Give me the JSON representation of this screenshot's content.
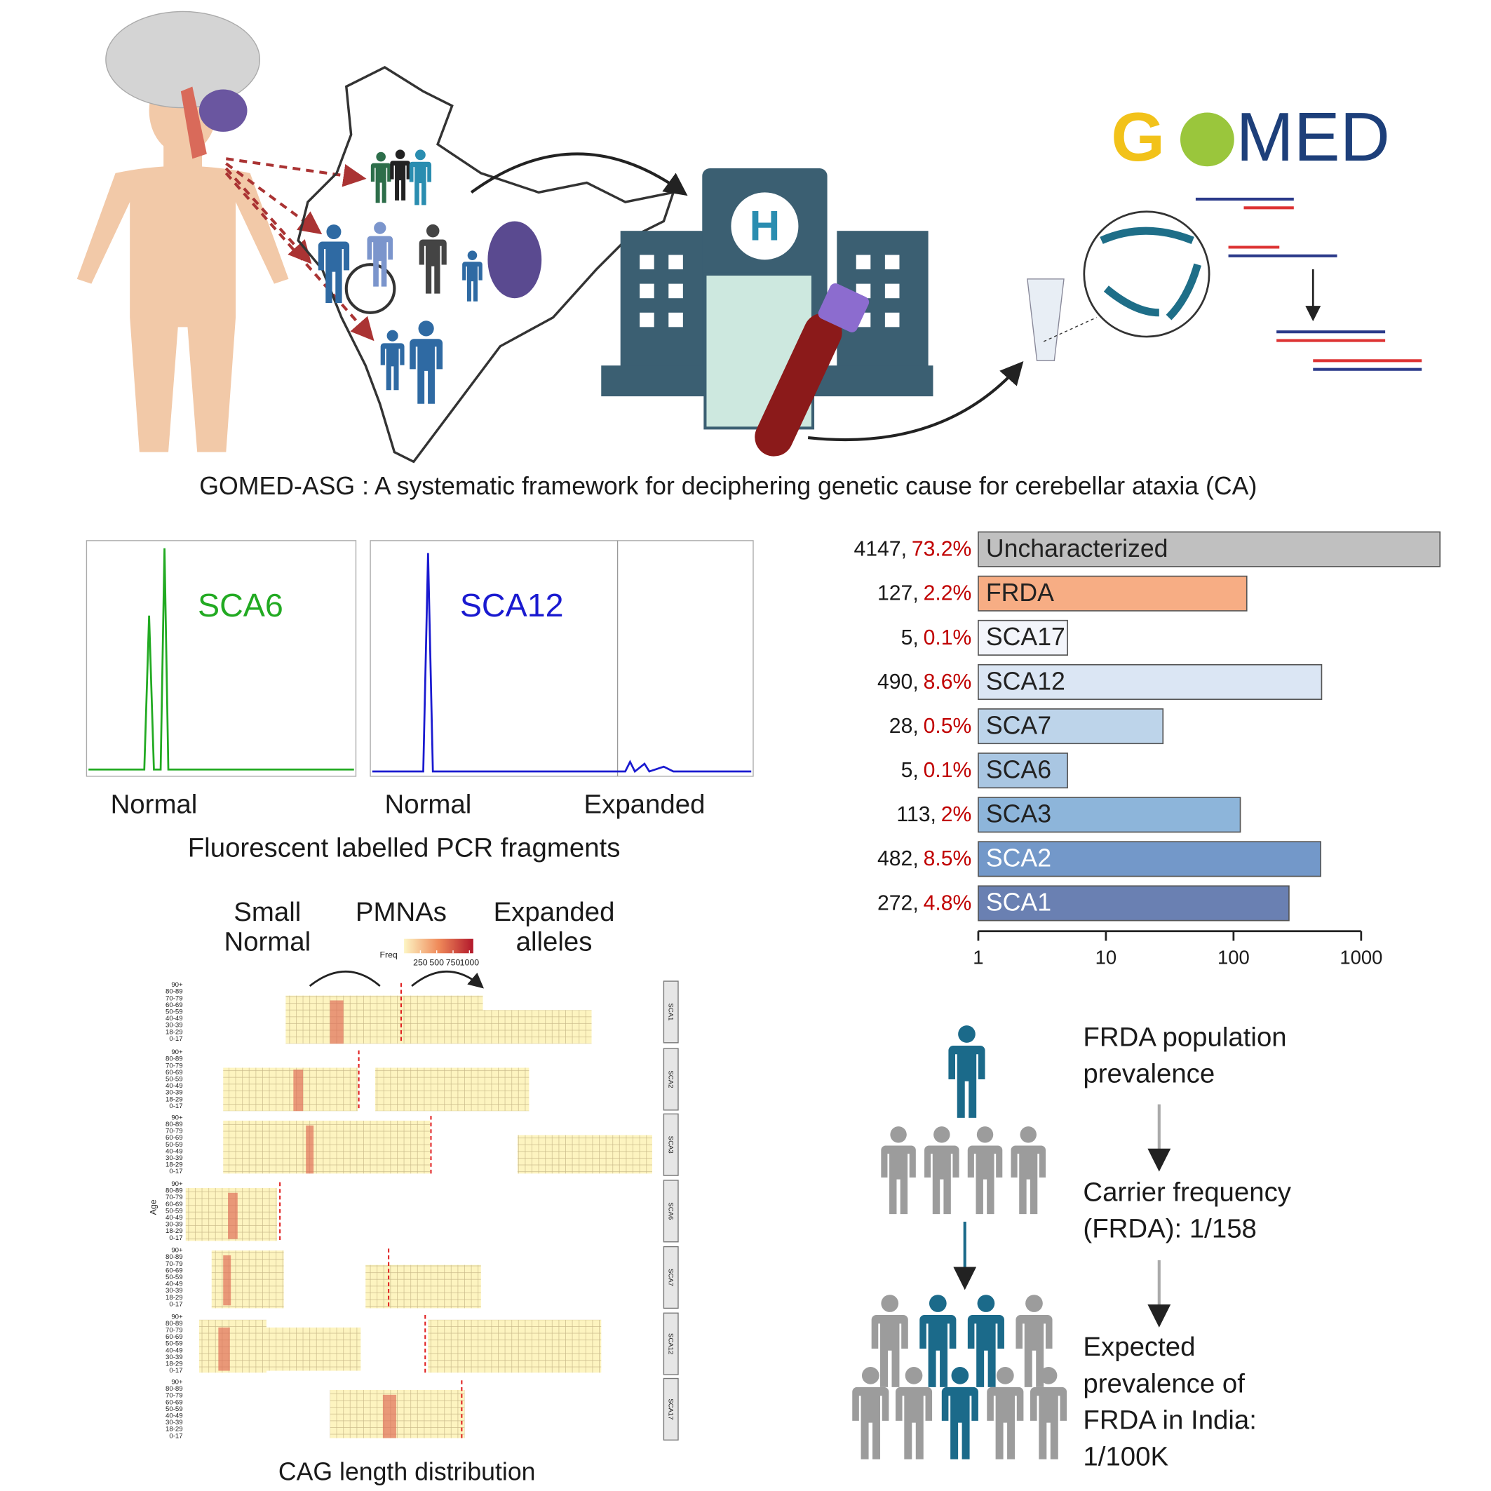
{
  "caption": "GOMED-ASG : A systematic framework for deciphering genetic cause for cerebellar ataxia (CA)",
  "logo": [
    "G",
    "MED"
  ],
  "hospital_letter": "H",
  "pcr": {
    "panel_labels": [
      "SCA6",
      "SCA12"
    ],
    "peak_labels": [
      "Normal",
      "Normal",
      "Expanded"
    ],
    "title": "Fluorescent labelled PCR fragments"
  },
  "chart_data": {
    "type": "bar",
    "orientation": "horizontal",
    "log_scale": true,
    "categories": [
      "Uncharacterized",
      "FRDA",
      "SCA17",
      "SCA12",
      "SCA7",
      "SCA6",
      "SCA3",
      "SCA2",
      "SCA1"
    ],
    "values": [
      4147,
      127,
      5,
      490,
      28,
      5,
      113,
      482,
      272
    ],
    "value_labels": [
      "4147,",
      "127,",
      "5,",
      "490,",
      "28,",
      "5,",
      "113,",
      "482,",
      "272,"
    ],
    "percent_labels": [
      "73.2%",
      "2.2%",
      "0.1%",
      "8.6%",
      "0.5%",
      "0.1%",
      "2%",
      "8.5%",
      "4.8%"
    ],
    "colors": [
      "#c0c0c0",
      "#f7ad84",
      "#f3f5fb",
      "#dbe6f4",
      "#bdd4ea",
      "#a9c6e2",
      "#8db5da",
      "#7398c9",
      "#6a80b2"
    ],
    "label_colors": [
      "#222222",
      "#222222",
      "#222222",
      "#222222",
      "#222222",
      "#222222",
      "#222222",
      "#ffffff",
      "#ffffff"
    ],
    "percent_color": "#c00000",
    "xlim": [
      1,
      1000
    ],
    "xticks": [
      1,
      10,
      100,
      1000
    ]
  },
  "heatmap": {
    "headers": [
      [
        "Small",
        "Normal"
      ],
      [
        "PMNAs"
      ],
      [
        "Expanded",
        "alleles"
      ]
    ],
    "legend_title": "Freq",
    "legend_ticks": [
      250,
      500,
      750,
      1000
    ],
    "facets": [
      "SCA1",
      "SCA2",
      "SCA3",
      "SCA6",
      "SCA7",
      "SCA12",
      "SCA17"
    ],
    "age_groups": [
      "90+",
      "80-89",
      "70-79",
      "60-69",
      "50-59",
      "40-49",
      "30-39",
      "18-29",
      "0-17"
    ],
    "y_label": "Age",
    "x_label": "CAG length distribution"
  },
  "frda": {
    "steps": [
      [
        "FRDA population",
        "prevalence"
      ],
      [
        "Carrier frequency",
        "(FRDA): 1/158"
      ],
      [
        "Expected",
        "prevalence of",
        "FRDA in India:",
        "1/100K"
      ]
    ]
  }
}
